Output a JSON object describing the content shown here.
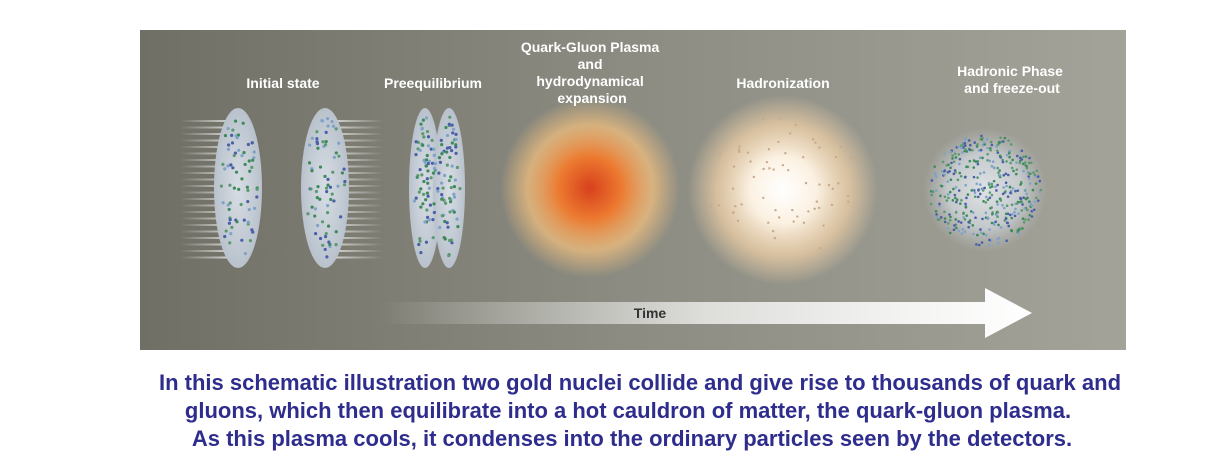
{
  "stages": [
    {
      "lines": [
        "Initial state"
      ]
    },
    {
      "lines": [
        "Preequilibrium"
      ]
    },
    {
      "lines": [
        "Quark-Gluon Plasma",
        "and",
        "hydrodynamical",
        "expansion"
      ]
    },
    {
      "lines": [
        "Hadronization"
      ]
    },
    {
      "lines": [
        "Hadronic Phase",
        "and freeze-out"
      ]
    }
  ],
  "arrow_label": "Time",
  "caption": [
    "In this schematic illustration two gold nuclei collide and give rise to thousands of quark and",
    "gluons, which then equilibrate into a hot cauldron of matter, the quark-gluon plasma.",
    "As this plasma cools, it condenses into the ordinary particles seen by the detectors."
  ]
}
